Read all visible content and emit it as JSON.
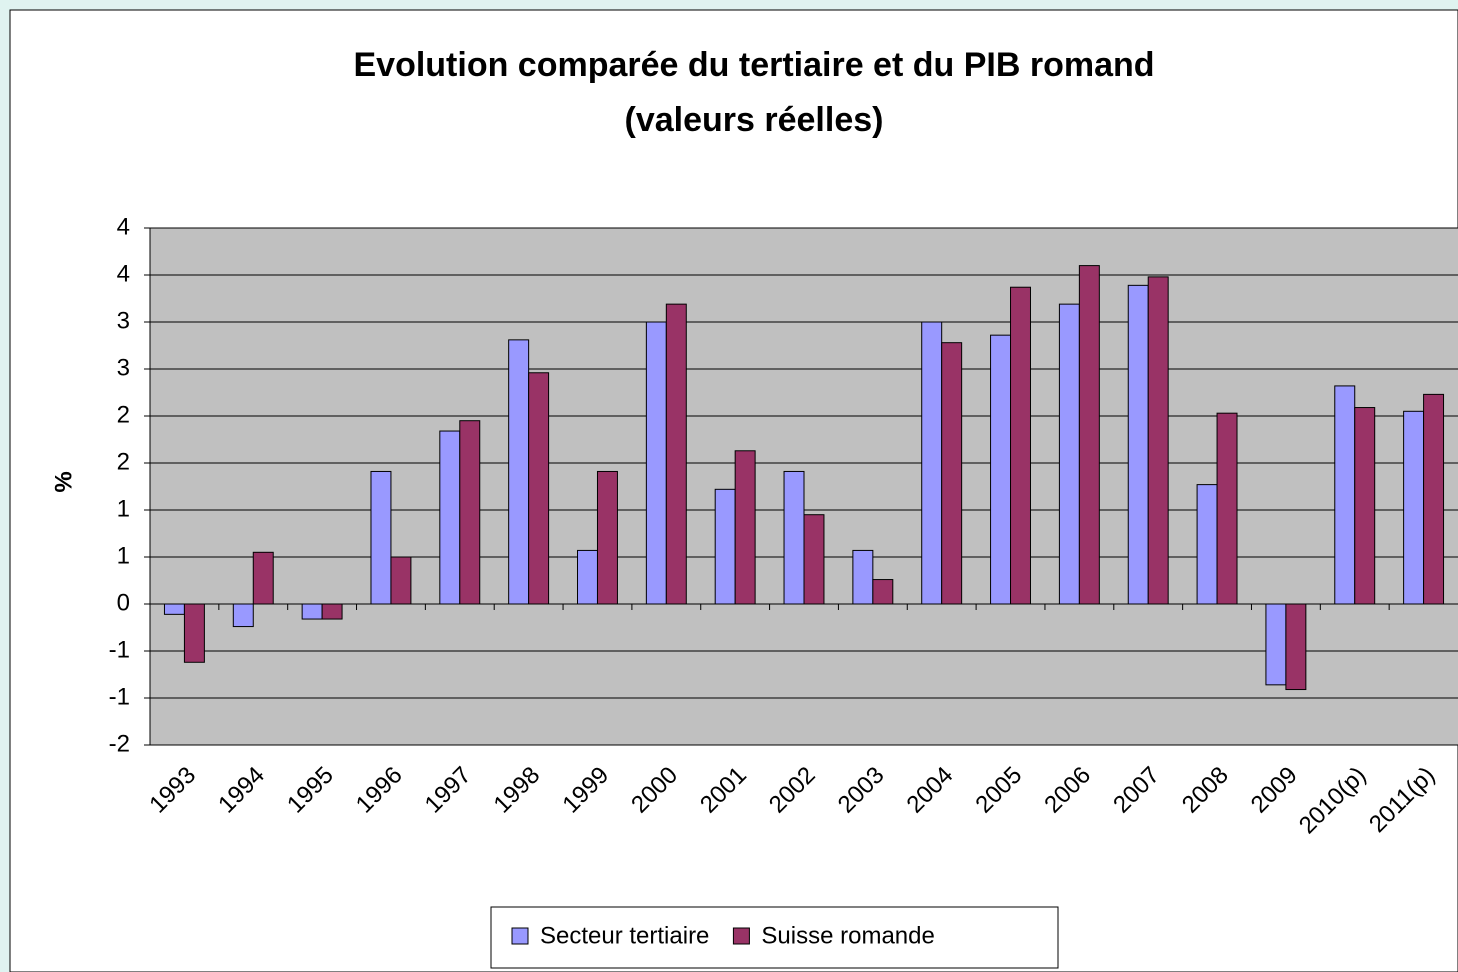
{
  "chart_data": {
    "type": "bar",
    "title": "Evolution comparée du tertiaire et du PIB romand",
    "subtitle": "(valeurs réelles)",
    "y_label": "%",
    "categories": [
      "1993",
      "1994",
      "1995",
      "1996",
      "1997",
      "1998",
      "1999",
      "2000",
      "2001",
      "2002",
      "2003",
      "2004",
      "2005",
      "2006",
      "2007",
      "2008",
      "2009",
      "2010(p)",
      "2011(p)"
    ],
    "series": [
      {
        "name": "Secteur tertiaire",
        "color": "#9999ff",
        "values": [
          -0.11,
          -0.24,
          -0.16,
          1.41,
          1.84,
          2.81,
          0.57,
          3.0,
          1.22,
          1.41,
          0.57,
          3.0,
          2.86,
          3.19,
          3.39,
          1.27,
          -0.86,
          2.32,
          2.05
        ]
      },
      {
        "name": "Suisse romande",
        "color": "#993366",
        "values": [
          -0.62,
          0.55,
          -0.16,
          0.5,
          1.95,
          2.46,
          1.41,
          3.19,
          1.63,
          0.95,
          0.26,
          2.78,
          3.37,
          3.6,
          3.48,
          2.03,
          -0.91,
          2.09,
          2.23
        ]
      }
    ],
    "ylim": [
      -1.5,
      4
    ],
    "yticks": [
      {
        "value": -1.5,
        "label": "-2"
      },
      -1,
      {
        "value": -0.5,
        "label": "-1"
      },
      0,
      {
        "value": 0.5,
        "label": "1"
      },
      1,
      {
        "value": 1.5,
        "label": "2"
      },
      2,
      {
        "value": 2.5,
        "label": "3"
      },
      3,
      {
        "value": 3.5,
        "label": "4"
      },
      4
    ],
    "grid": true,
    "plot_background": "#c0c0c0",
    "legend": "bottom"
  }
}
